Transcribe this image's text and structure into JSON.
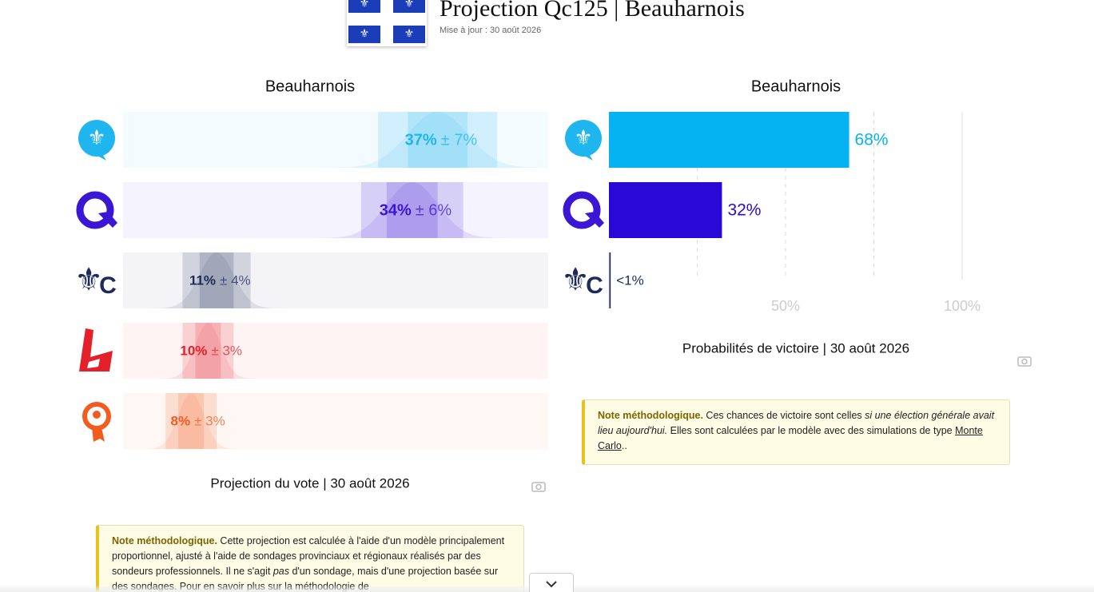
{
  "header": {
    "title": "Projection Qc125 | Beauharnois",
    "updated": "Mise à jour : 30 août 2026"
  },
  "chart_data": [
    {
      "type": "interval",
      "title": "Beauharnois",
      "caption": "Projection du vote | 30 août 2026",
      "values": [
        37,
        34,
        11,
        10,
        8
      ],
      "value_labels": [
        "37%",
        "34%",
        "11%",
        "10%",
        "8%"
      ],
      "errors": [
        7,
        6,
        4,
        3,
        3
      ],
      "error_labels": [
        "± 7%",
        "± 6%",
        "± 4%",
        "± 3%",
        "± 3%"
      ],
      "colors": [
        "#1fb6f0",
        "#3b16d4",
        "#1e2a5a",
        "#e4212b",
        "#f25c1f"
      ],
      "xlim": [
        0,
        50
      ]
    },
    {
      "type": "bar",
      "title": "Beauharnois",
      "caption": "Probabilités de victoire | 30 août 2026",
      "values": [
        68,
        32,
        0.5
      ],
      "value_labels": [
        "68%",
        "32%",
        "<1%"
      ],
      "colors": [
        "#05b3f2",
        "#2a08d6",
        "#1e2a5a"
      ],
      "xlim": [
        0,
        100
      ],
      "xticks": [
        {
          "value": 50,
          "label": "50%"
        },
        {
          "value": 100,
          "label": "100%"
        }
      ],
      "xminorticks": [
        25,
        75
      ],
      "grid": true
    }
  ],
  "notes": [
    {
      "parts": [
        "Note méthodologique.",
        " Cette projection est calculée à l'aide d'un modèle principalement proportionnel, ajusté à l'aide de sondages provinciaux et régionaux réalisés par des sondeurs professionnels. Il ne s'agit ",
        "pas",
        " d'un sondage, mais d'une projection basée sur des sondages. Pour en savoir plus sur la méthodologie de"
      ]
    },
    {
      "parts": [
        "Note méthodologique.",
        " Ces chances de victoire sont celles ",
        "si une élection générale avait lieu aujourd'hui.",
        " Elles sont calculées par le modèle avec des simulations de type ",
        "Monte Carlo",
        ".."
      ]
    }
  ]
}
